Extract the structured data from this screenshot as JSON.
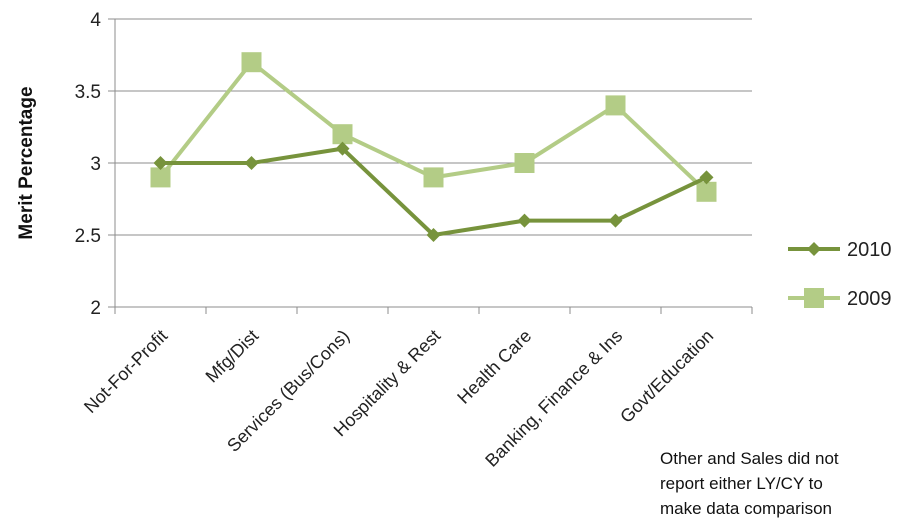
{
  "chart_data": {
    "type": "line",
    "ylabel": "Merit Percentage",
    "ylim": [
      2,
      4
    ],
    "yticks": [
      "2",
      "2.5",
      "3",
      "3.5",
      "4"
    ],
    "categories": [
      "Not-For-Profit",
      "Mfg/Dist",
      "Services (Bus/Cons)",
      "Hospitality & Rest",
      "Health Care",
      "Banking, Finance & Ins",
      "Govt/Education"
    ],
    "series": [
      {
        "name": "2010",
        "values": [
          3.0,
          3.0,
          3.1,
          2.5,
          2.6,
          2.6,
          2.9
        ],
        "color": "#77933c",
        "marker": "diamond"
      },
      {
        "name": "2009",
        "values": [
          2.9,
          3.7,
          3.2,
          2.9,
          3.0,
          3.4,
          2.8
        ],
        "color": "#b3cc86",
        "marker": "square"
      }
    ],
    "grid": true,
    "legend": "right"
  },
  "note": {
    "lines": [
      "Other and Sales did not",
      "report  either LY/CY to",
      "make data comparison"
    ]
  }
}
